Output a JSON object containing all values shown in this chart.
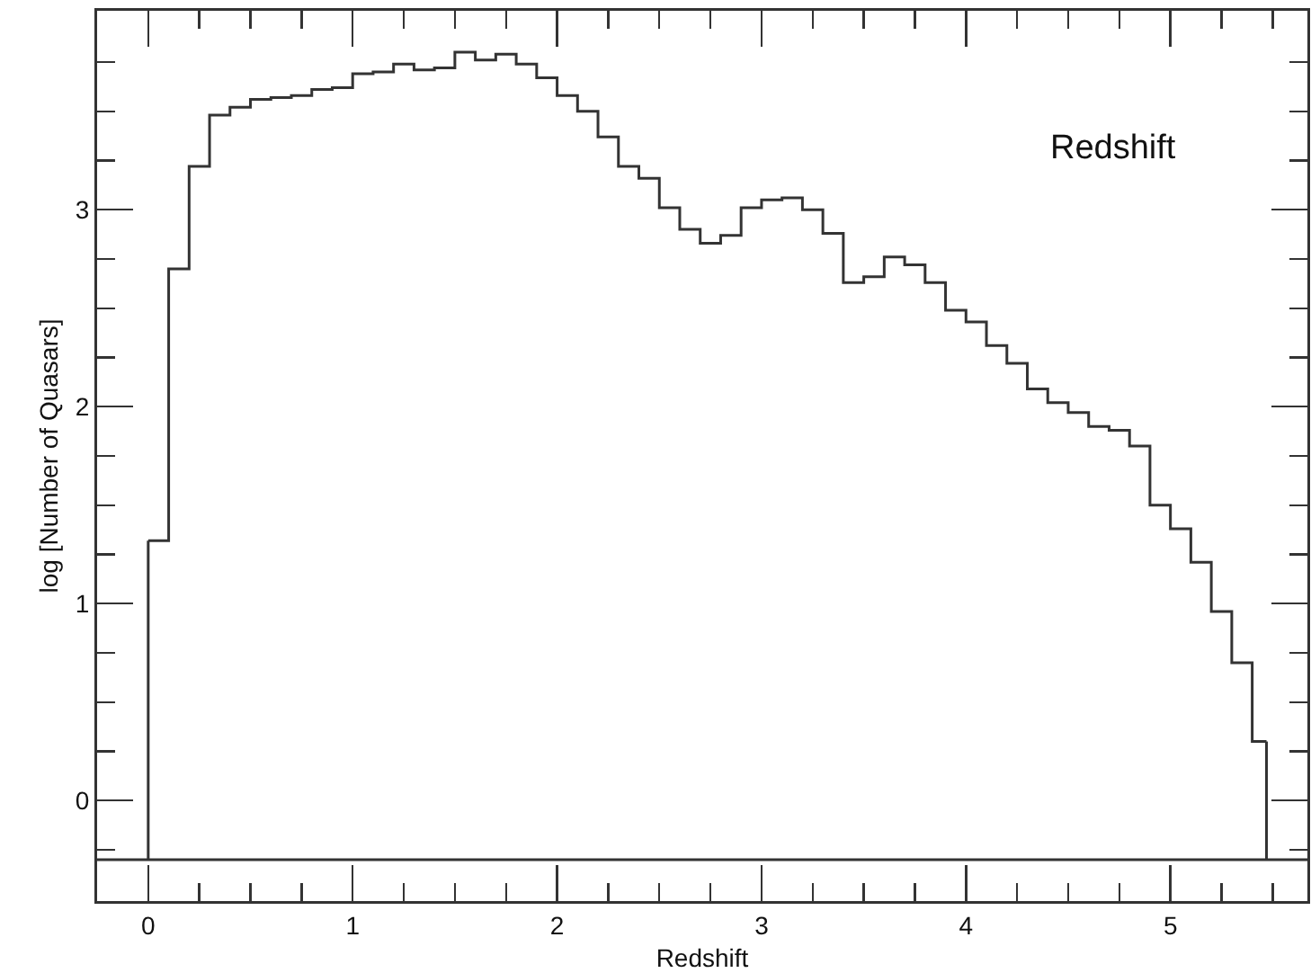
{
  "chart_data": {
    "type": "histogram",
    "xlabel": "Redshift",
    "ylabel": "log [Number of Quasars]",
    "annotations": [
      "Redshift"
    ],
    "bins": [
      0,
      0.1,
      0.2,
      0.3,
      0.4,
      0.5,
      0.6,
      0.7,
      0.8,
      0.9,
      1.0,
      1.1,
      1.2,
      1.3,
      1.4,
      1.5,
      1.6,
      1.7,
      1.8,
      1.9,
      2.0,
      2.1,
      2.2,
      2.3,
      2.4,
      2.5,
      2.6,
      2.7,
      2.8,
      2.9,
      3.0,
      3.1,
      3.2,
      3.3,
      3.4,
      3.5,
      3.6,
      3.7,
      3.8,
      3.9,
      4.0,
      4.1,
      4.2,
      4.3,
      4.4,
      4.5,
      4.6,
      4.7,
      4.8,
      4.9,
      5.0,
      5.1,
      5.2,
      5.3,
      5.4,
      5.47
    ],
    "values": [
      1.32,
      2.7,
      3.22,
      3.48,
      3.52,
      3.56,
      3.57,
      3.58,
      3.61,
      3.62,
      3.69,
      3.7,
      3.74,
      3.71,
      3.72,
      3.8,
      3.76,
      3.79,
      3.74,
      3.67,
      3.58,
      3.5,
      3.37,
      3.22,
      3.16,
      3.01,
      2.9,
      2.83,
      2.87,
      3.01,
      3.05,
      3.06,
      3.0,
      2.88,
      2.63,
      2.66,
      2.76,
      2.72,
      2.63,
      2.49,
      2.43,
      2.31,
      2.22,
      2.09,
      2.02,
      1.97,
      1.9,
      1.88,
      1.8,
      1.5,
      1.38,
      1.21,
      0.96,
      0.7,
      0.3
    ],
    "color": "#333333",
    "ref_lines": [
      {
        "axis": "y",
        "value": -0.3,
        "color": "#333333"
      }
    ],
    "xlim": [
      -0.25,
      5.67
    ],
    "xticks": [
      {
        "value": -0.25,
        "label": null
      },
      0,
      {
        "value": 0.25,
        "label": null
      },
      {
        "value": 0.5,
        "label": null
      },
      {
        "value": 0.75,
        "label": null
      },
      1,
      {
        "value": 1.25,
        "label": null
      },
      {
        "value": 1.5,
        "label": null
      },
      {
        "value": 1.75,
        "label": null
      },
      2,
      {
        "value": 2.25,
        "label": null
      },
      {
        "value": 2.5,
        "label": null
      },
      {
        "value": 2.75,
        "label": null
      },
      3,
      {
        "value": 3.25,
        "label": null
      },
      {
        "value": 3.5,
        "label": null
      },
      {
        "value": 3.75,
        "label": null
      },
      4,
      {
        "value": 4.25,
        "label": null
      },
      {
        "value": 4.5,
        "label": null
      },
      {
        "value": 4.75,
        "label": null
      },
      5,
      {
        "value": 5.25,
        "label": null
      },
      {
        "value": 5.5,
        "label": null
      }
    ],
    "ylim": [
      -0.51,
      4.01
    ],
    "yticks": [
      {
        "value": -0.25,
        "label": null
      },
      0,
      {
        "value": 0.25,
        "label": null
      },
      {
        "value": 0.5,
        "label": null
      },
      {
        "value": 0.75,
        "label": null
      },
      1,
      {
        "value": 1.25,
        "label": null
      },
      {
        "value": 1.5,
        "label": null
      },
      {
        "value": 1.75,
        "label": null
      },
      2,
      {
        "value": 2.25,
        "label": null
      },
      {
        "value": 2.5,
        "label": null
      },
      {
        "value": 2.75,
        "label": null
      },
      3,
      {
        "value": 3.25,
        "label": null
      },
      {
        "value": 3.5,
        "label": null
      },
      {
        "value": 3.75,
        "label": null
      }
    ]
  }
}
